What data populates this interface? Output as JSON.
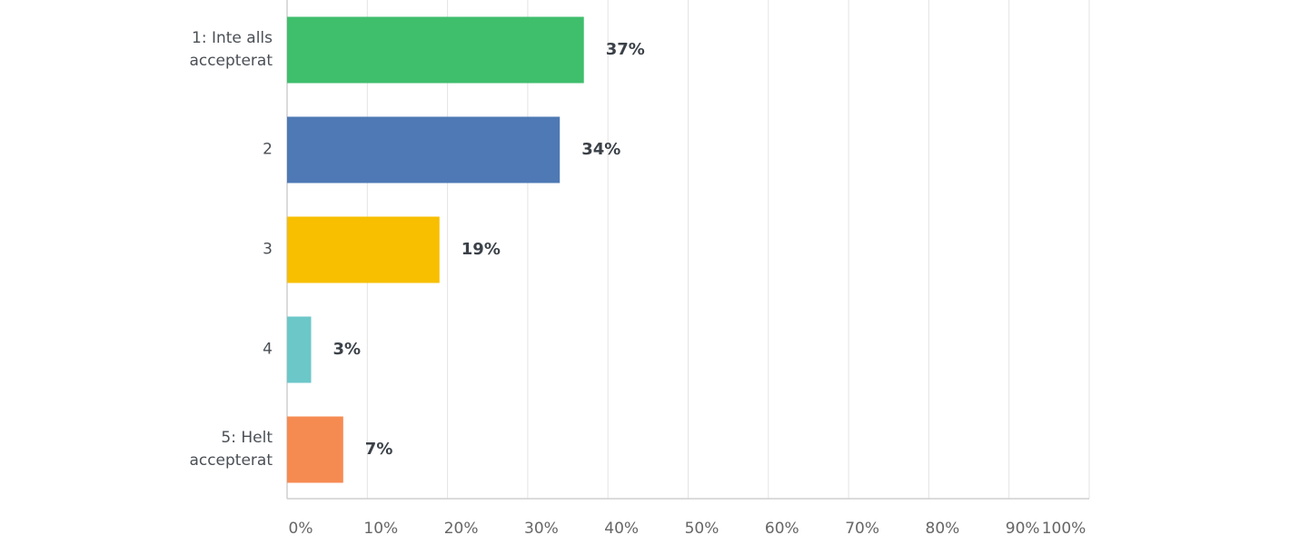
{
  "chart_data": {
    "type": "hbar",
    "categories": [
      "1: Inte alls accepterat",
      "2",
      "3",
      "4",
      "5: Helt accepterat"
    ],
    "values": [
      37,
      34,
      19,
      3,
      7
    ],
    "value_labels": [
      "37%",
      "34%",
      "19%",
      "3%",
      "7%"
    ],
    "colors": [
      "#3fbe6c",
      "#4e79b4",
      "#f7bf00",
      "#6cc7c9",
      "#f68b52"
    ],
    "xlim": [
      0,
      100
    ],
    "xticks": [
      {
        "value": 0,
        "label": "0%"
      },
      {
        "value": 10,
        "label": "10%"
      },
      {
        "value": 20,
        "label": "20%"
      },
      {
        "value": 30,
        "label": "30%"
      },
      {
        "value": 40,
        "label": "40%"
      },
      {
        "value": 50,
        "label": "50%"
      },
      {
        "value": 60,
        "label": "60%"
      },
      {
        "value": 70,
        "label": "70%"
      },
      {
        "value": 80,
        "label": "80%"
      },
      {
        "value": 90,
        "label": "90%"
      },
      {
        "value": 100,
        "label": "100%"
      }
    ],
    "grid": true
  }
}
